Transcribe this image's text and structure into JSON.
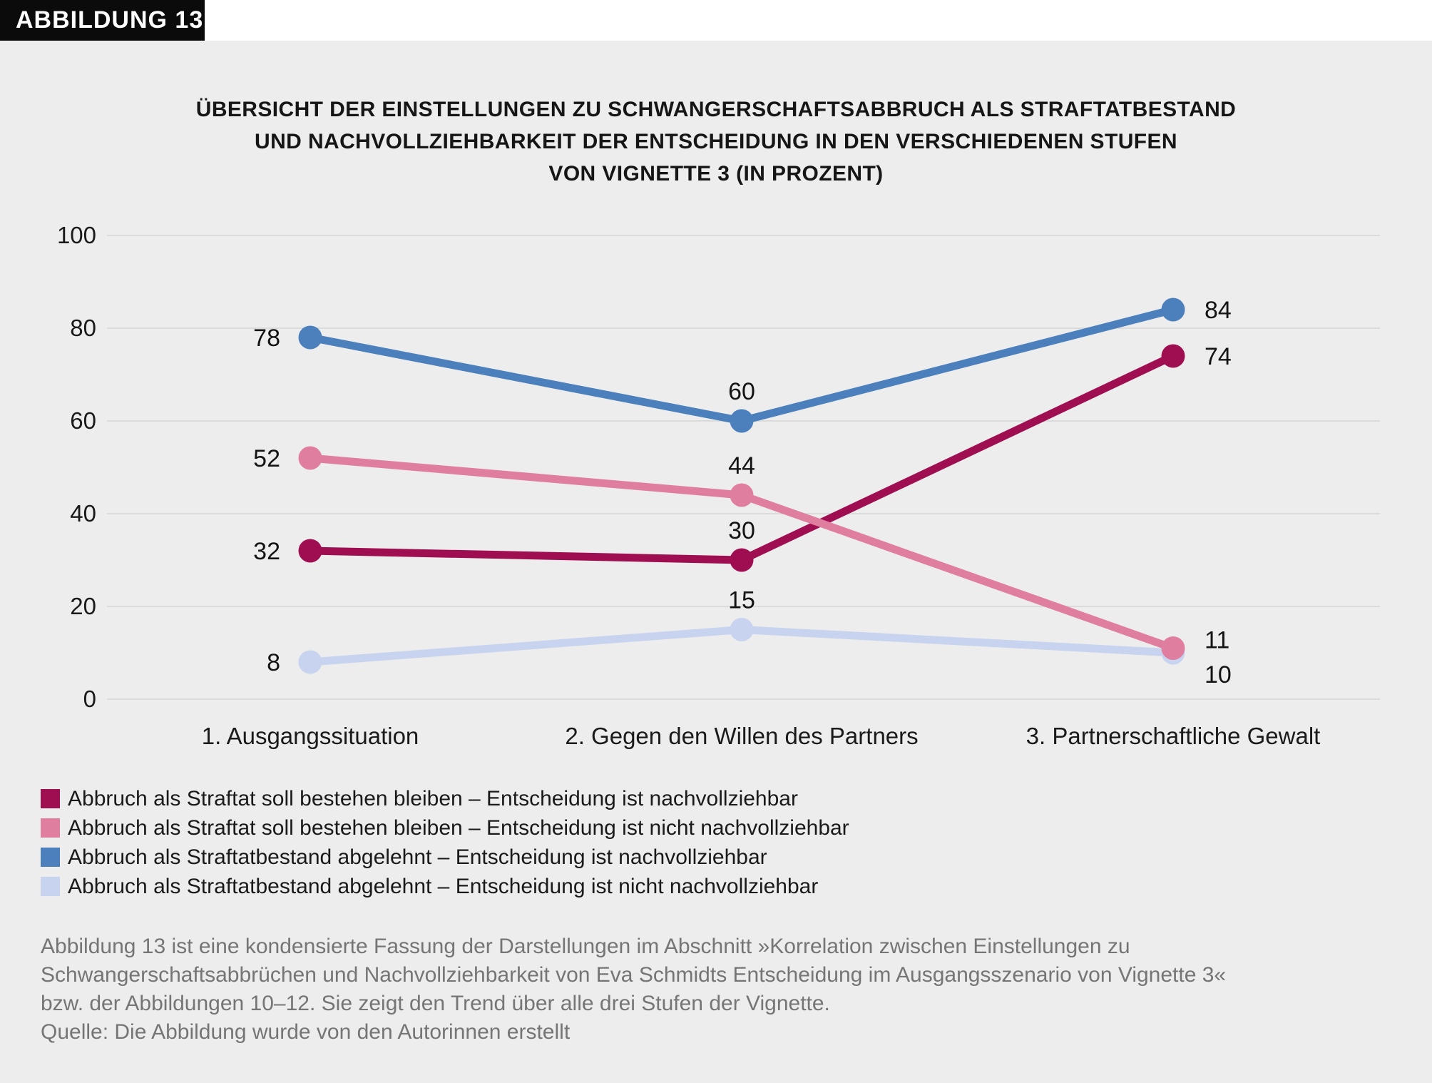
{
  "figure_tag": "ABBILDUNG 13",
  "title_lines": [
    "ÜBERSICHT DER EINSTELLUNGEN ZU SCHWANGERSCHAFTSABBRUCH ALS STRAFTATBESTAND",
    "UND NACHVOLLZIEHBARKEIT DER ENTSCHEIDUNG IN DEN VERSCHIEDENEN STUFEN",
    "VON VIGNETTE 3 (IN PROZENT)"
  ],
  "chart_data": {
    "type": "line",
    "title": "Übersicht der Einstellungen zu Schwangerschaftsabbruch als Straftatbestand und Nachvollziehbarkeit der Entscheidung in den verschiedenen Stufen von Vignette 3 (in Prozent)",
    "categories": [
      "1. Ausgangssituation",
      "2. Gegen den Willen des Partners",
      "3. Partnerschaftliche Gewalt"
    ],
    "series": [
      {
        "name": "Abbruch als Straftat soll bestehen bleiben – Entscheidung ist nachvollziehbar",
        "color": "#A00E52",
        "values": [
          32,
          30,
          74
        ],
        "label_dy": [
          0,
          0,
          0
        ]
      },
      {
        "name": "Abbruch als Straftat soll bestehen bleiben – Entscheidung ist nicht nachvollziehbar",
        "color": "#DF7E9F",
        "values": [
          52,
          44,
          11
        ],
        "label_dy": [
          0,
          0,
          -12
        ]
      },
      {
        "name": "Abbruch als Straftatbestand abgelehnt – Entscheidung ist nachvollziehbar",
        "color": "#4C80BC",
        "values": [
          78,
          60,
          84
        ],
        "label_dy": [
          0,
          0,
          0
        ]
      },
      {
        "name": "Abbruch als Straftatbestand abgelehnt – Entscheidung ist nicht nachvollziehbar",
        "color": "#C7D3EF",
        "values": [
          8,
          15,
          10
        ],
        "label_dy": [
          0,
          0,
          30
        ]
      }
    ],
    "draw_order": [
      0,
      2,
      3,
      1
    ],
    "xlabel": "",
    "ylabel": "",
    "ylim": [
      0,
      100
    ],
    "yticks": [
      0,
      20,
      40,
      60,
      80,
      100
    ],
    "grid": true,
    "legend_position": "bottom-left",
    "colors": {
      "panel_background": "#EDEDED",
      "gridline": "#DBDBDB",
      "text": "#1a1a1a",
      "footnote_text": "#757575"
    }
  },
  "footnote_lines": [
    "Abbildung 13 ist eine kondensierte Fassung der Darstellungen im Abschnitt »Korrelation zwischen Einstellungen zu",
    "Schwangerschaftsabbrüchen und Nachvollziehbarkeit von Eva Schmidts Entscheidung im Ausgangsszenario von Vignette 3«",
    "bzw. der Abbildungen 10–12. Sie zeigt den Trend über alle drei Stufen der Vignette.",
    "Quelle: Die Abbildung wurde von den Autorinnen erstellt"
  ]
}
